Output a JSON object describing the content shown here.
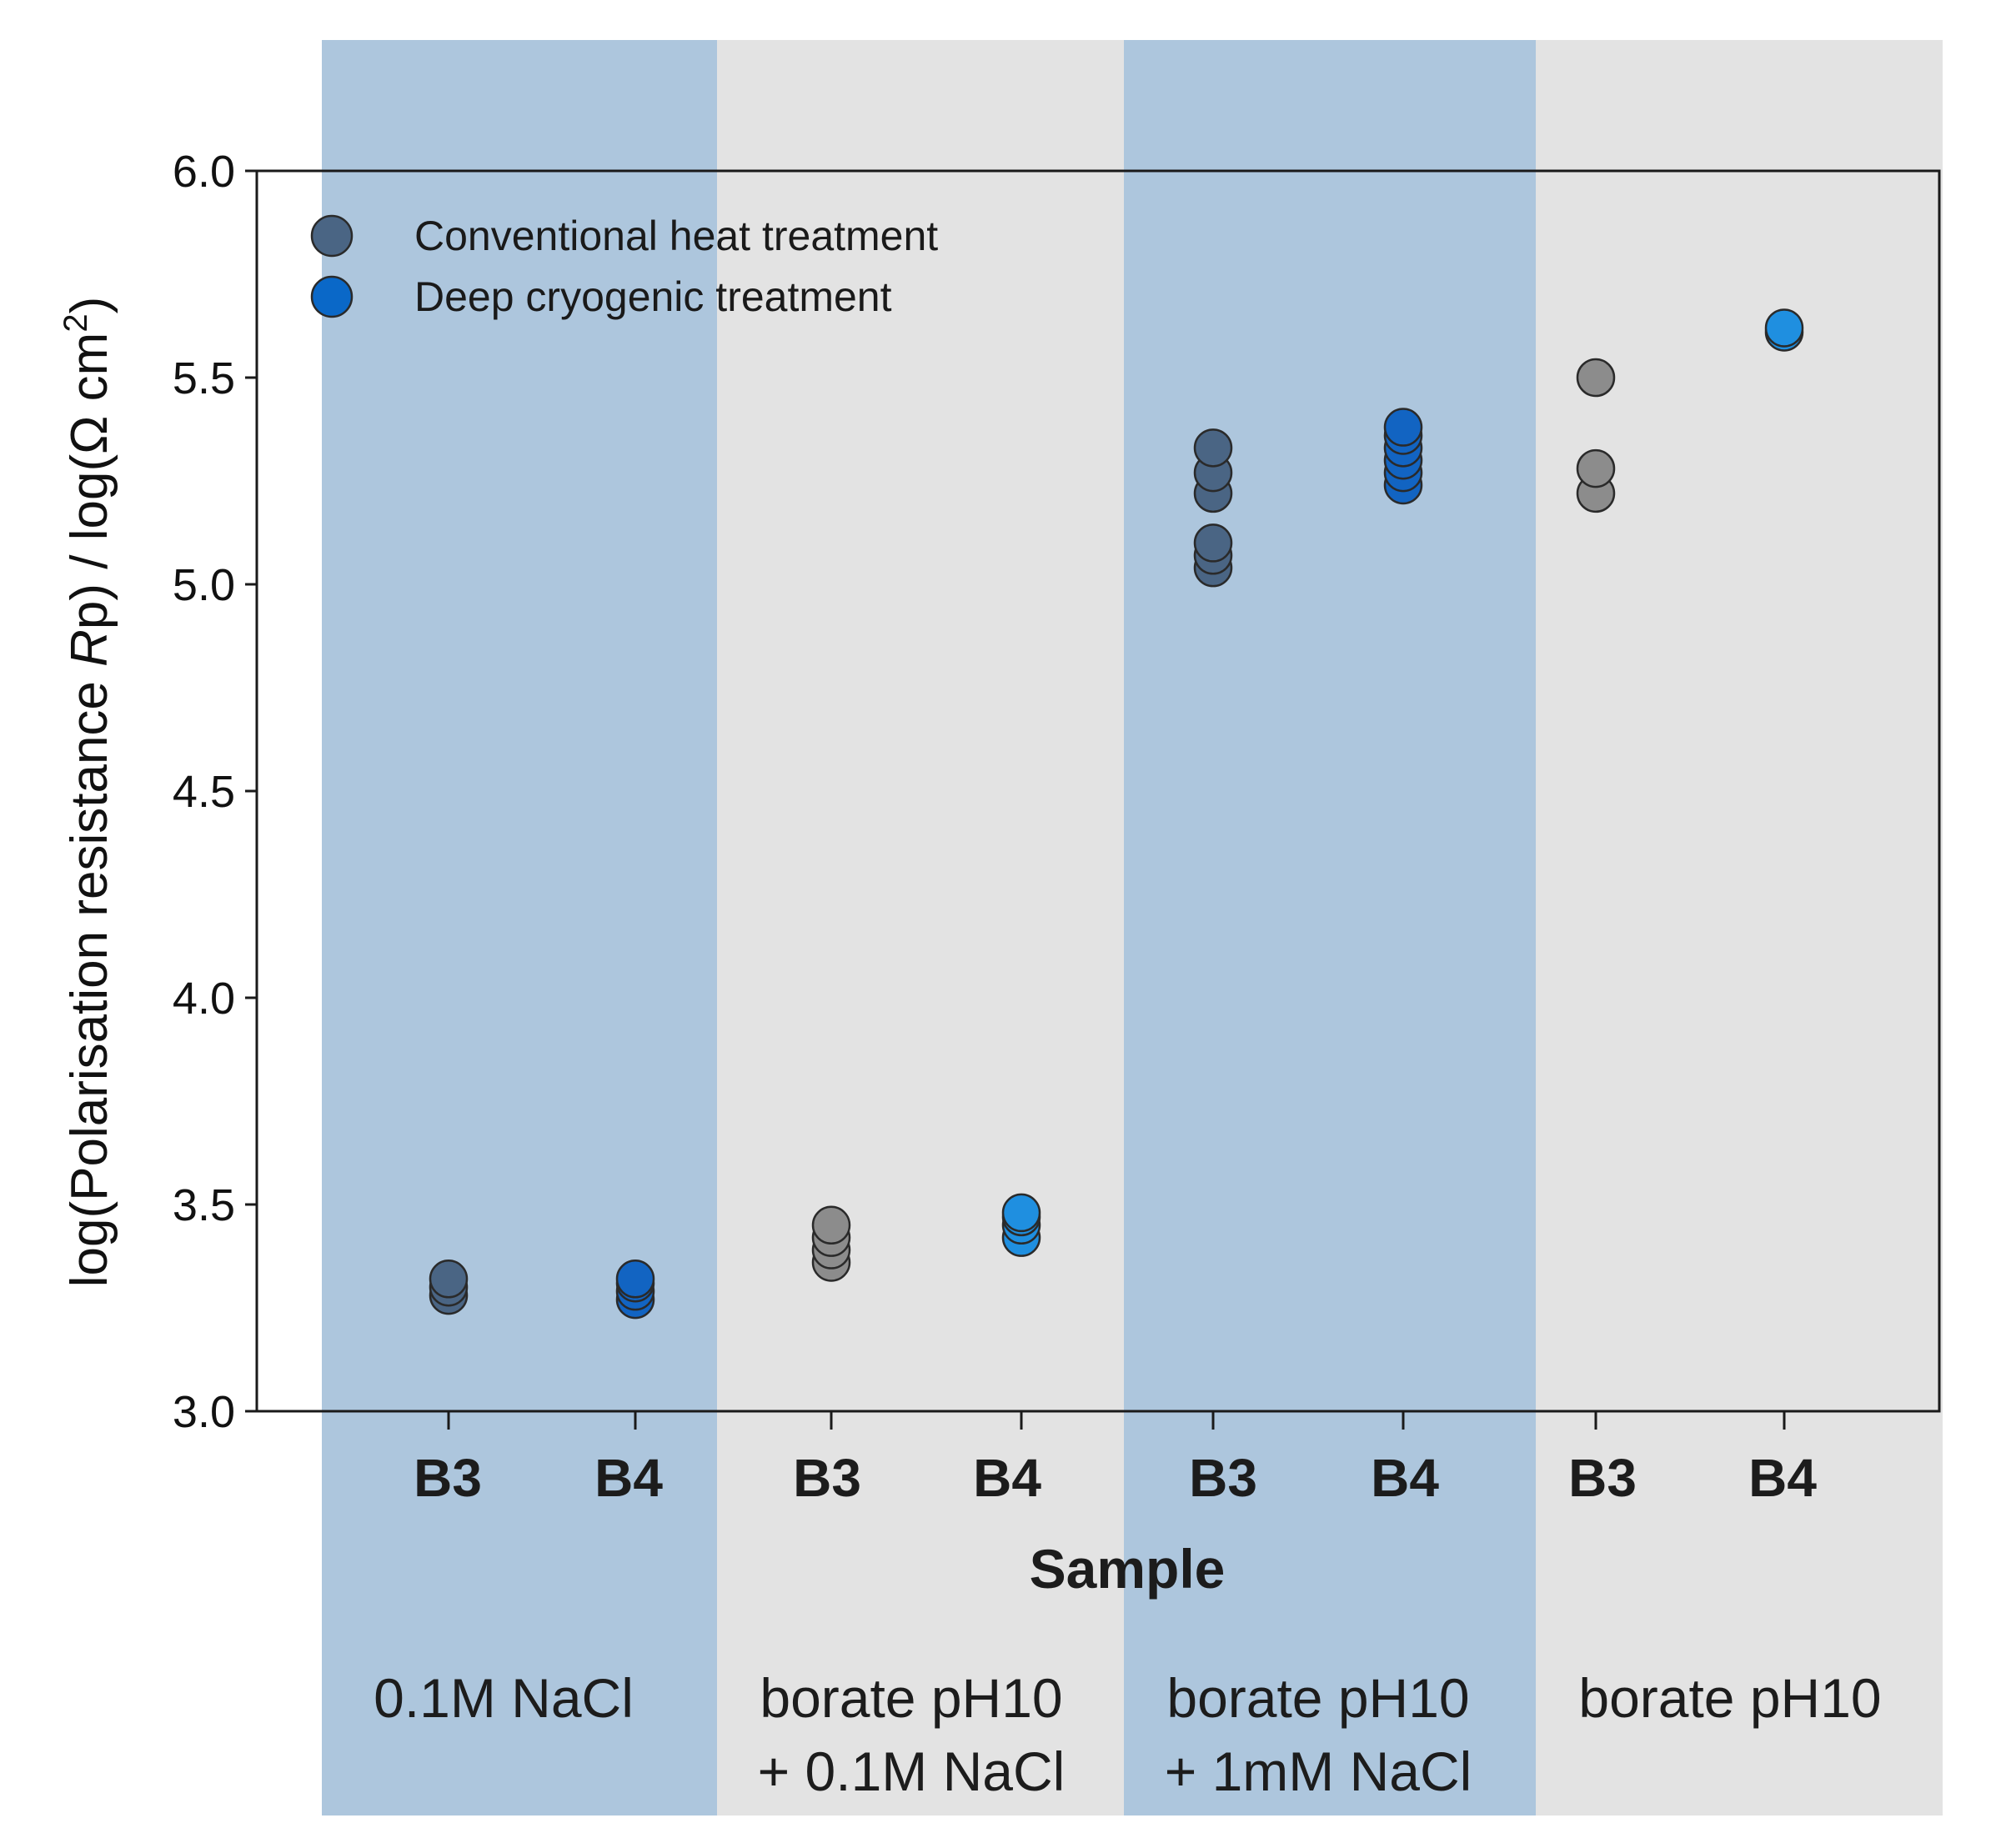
{
  "chart_data": {
    "type": "scatter",
    "title": "",
    "xlabel": "Sample",
    "ylabel": {
      "prefix": "log(Polarisation resistance ",
      "italic": "R",
      "after_italic": "p) / log(Ω cm",
      "superscript": "2",
      "suffix": ")"
    },
    "ylim": [
      3.0,
      6.0
    ],
    "y_ticks": [
      "3.0",
      "3.5",
      "4.0",
      "4.5",
      "5.0",
      "5.5",
      "6.0"
    ],
    "categories": [
      "B3",
      "B4",
      "B3",
      "B4",
      "B3",
      "B4",
      "B3",
      "B4"
    ],
    "groups": [
      {
        "lines": [
          "0.1M NaCl"
        ],
        "color": "#adc6dd"
      },
      {
        "lines": [
          "borate pH10",
          "+ 0.1M NaCl"
        ],
        "color": "#e3e3e3"
      },
      {
        "lines": [
          "borate pH10",
          "+ 1mM NaCl"
        ],
        "color": "#adc6dd"
      },
      {
        "lines": [
          "borate pH10"
        ],
        "color": "#e3e3e3"
      }
    ],
    "series": [
      {
        "name": "Conventional heat treatment",
        "legend_color": "#4a6584",
        "category_index": 0,
        "values": [
          3.28,
          3.3,
          3.32
        ],
        "color": "#4a6584"
      },
      {
        "name": "Deep cryogenic treatment",
        "legend_color": "#0a68c8",
        "category_index": 1,
        "values": [
          3.27,
          3.29,
          3.31,
          3.32
        ],
        "color": "#1264c2"
      },
      {
        "name": "Conventional heat treatment",
        "legend_color": "#4a6584",
        "category_index": 2,
        "values": [
          3.36,
          3.39,
          3.42,
          3.45
        ],
        "color": "#8c8c8c"
      },
      {
        "name": "Deep cryogenic treatment",
        "legend_color": "#0a68c8",
        "category_index": 3,
        "values": [
          3.42,
          3.45,
          3.47,
          3.48
        ],
        "color": "#1f8fe0"
      },
      {
        "name": "Conventional heat treatment",
        "legend_color": "#4a6584",
        "category_index": 4,
        "values": [
          5.04,
          5.07,
          5.1,
          5.22,
          5.27,
          5.33
        ],
        "color": "#4a6584"
      },
      {
        "name": "Deep cryogenic treatment",
        "legend_color": "#0a68c8",
        "category_index": 5,
        "values": [
          5.24,
          5.27,
          5.3,
          5.33,
          5.36,
          5.38
        ],
        "color": "#1264c2"
      },
      {
        "name": "Conventional heat treatment",
        "legend_color": "#4a6584",
        "category_index": 6,
        "values": [
          5.22,
          5.28,
          5.5
        ],
        "color": "#8c8c8c"
      },
      {
        "name": "Deep cryogenic treatment",
        "legend_color": "#0a68c8",
        "category_index": 7,
        "values": [
          5.61,
          5.62
        ],
        "color": "#1f8fe0"
      }
    ],
    "legend": [
      {
        "name": "Conventional heat treatment",
        "color": "#4a6584"
      },
      {
        "name": "Deep cryogenic treatment",
        "color": "#0a68c8"
      }
    ],
    "legend_position": "top-left",
    "grid": false
  }
}
